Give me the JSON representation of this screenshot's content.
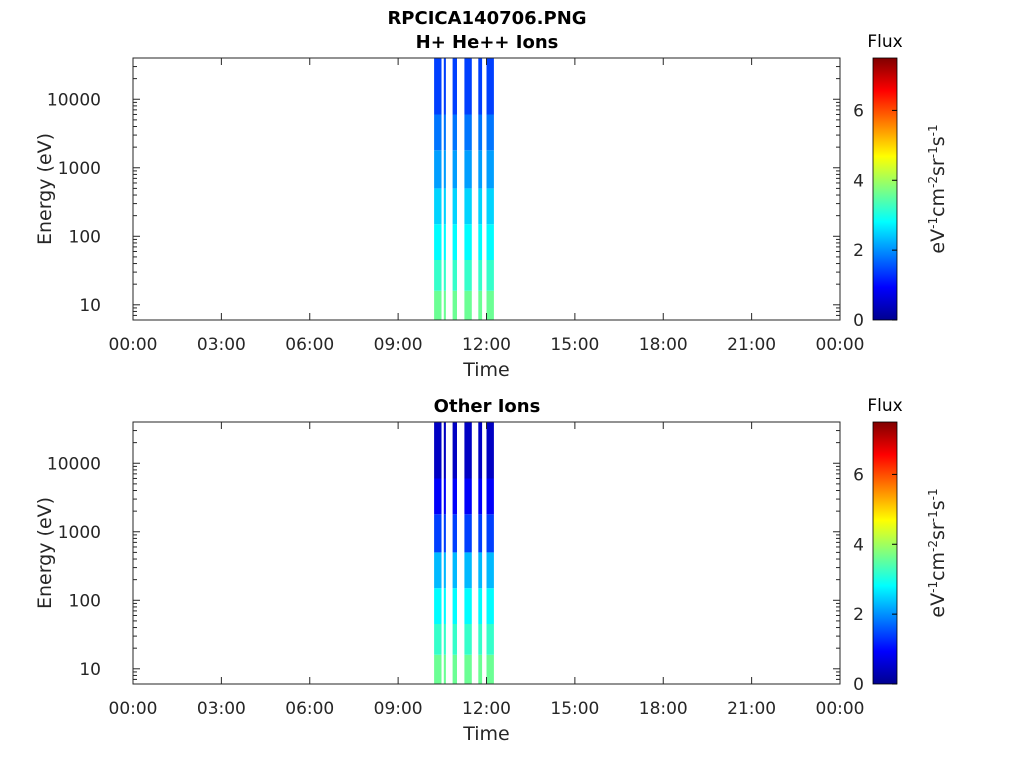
{
  "figure_title": "RPCICA140706.PNG",
  "chart_data": [
    {
      "type": "heatmap",
      "title": "H+ He++ Ions",
      "xlabel": "Time",
      "ylabel": "Energy (eV)",
      "x_ticks": [
        "00:00",
        "03:00",
        "06:00",
        "09:00",
        "12:00",
        "15:00",
        "18:00",
        "21:00",
        "00:00"
      ],
      "xlim_hours": [
        0,
        24
      ],
      "y_scale": "log",
      "y_ticks": [
        10,
        100,
        1000,
        10000
      ],
      "y_tick_labels": [
        "10",
        "100",
        "1000",
        "10000"
      ],
      "ylim": [
        6,
        40000
      ],
      "colorbar": {
        "title": "Flux",
        "label": "eV-1cm-2sr-1s-1",
        "ticks": [
          "0",
          "2",
          "4",
          "6"
        ],
        "range": [
          0,
          7.5
        ],
        "colormap": "jet"
      },
      "data_intervals_hours": [
        [
          10.22,
          10.47
        ],
        [
          10.55,
          10.62
        ],
        [
          10.85,
          11.0
        ],
        [
          11.25,
          11.5
        ],
        [
          11.72,
          11.85
        ],
        [
          12.0,
          12.25
        ]
      ],
      "energy_bands": [
        {
          "ymin": 6,
          "ymax": 16,
          "flux": 3.6
        },
        {
          "ymin": 16,
          "ymax": 45,
          "flux": 3.2
        },
        {
          "ymin": 45,
          "ymax": 150,
          "flux": 2.8
        },
        {
          "ymin": 150,
          "ymax": 500,
          "flux": 2.5
        },
        {
          "ymin": 500,
          "ymax": 1800,
          "flux": 2.1
        },
        {
          "ymin": 1800,
          "ymax": 6000,
          "flux": 1.8
        },
        {
          "ymin": 6000,
          "ymax": 40000,
          "flux": 1.4
        }
      ],
      "grid": false
    },
    {
      "type": "heatmap",
      "title": "Other Ions",
      "xlabel": "Time",
      "ylabel": "Energy (eV)",
      "x_ticks": [
        "00:00",
        "03:00",
        "06:00",
        "09:00",
        "12:00",
        "15:00",
        "18:00",
        "21:00",
        "00:00"
      ],
      "xlim_hours": [
        0,
        24
      ],
      "y_scale": "log",
      "y_ticks": [
        10,
        100,
        1000,
        10000
      ],
      "y_tick_labels": [
        "10",
        "100",
        "1000",
        "10000"
      ],
      "ylim": [
        6,
        40000
      ],
      "colorbar": {
        "title": "Flux",
        "label": "eV-1cm-2sr-1s-1",
        "ticks": [
          "0",
          "2",
          "4",
          "6"
        ],
        "range": [
          0,
          7.5
        ],
        "colormap": "jet"
      },
      "data_intervals_hours": [
        [
          10.22,
          10.47
        ],
        [
          10.55,
          10.62
        ],
        [
          10.85,
          11.0
        ],
        [
          11.25,
          11.5
        ],
        [
          11.72,
          11.85
        ],
        [
          12.0,
          12.25
        ]
      ],
      "energy_bands": [
        {
          "ymin": 6,
          "ymax": 16,
          "flux": 3.6
        },
        {
          "ymin": 16,
          "ymax": 45,
          "flux": 3.2
        },
        {
          "ymin": 45,
          "ymax": 150,
          "flux": 2.8
        },
        {
          "ymin": 150,
          "ymax": 500,
          "flux": 2.3
        },
        {
          "ymin": 500,
          "ymax": 1800,
          "flux": 1.4
        },
        {
          "ymin": 1800,
          "ymax": 6000,
          "flux": 0.9
        },
        {
          "ymin": 6000,
          "ymax": 40000,
          "flux": 0.5
        }
      ],
      "grid": false
    }
  ]
}
